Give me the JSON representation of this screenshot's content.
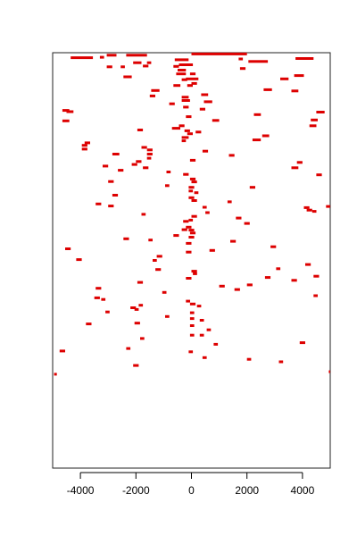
{
  "chart_data": {
    "type": "scatter",
    "title": "",
    "xlabel": "",
    "ylabel": "",
    "xlim": [
      -5000,
      5000
    ],
    "ylim": [
      0,
      1
    ],
    "x_ticks": [
      -4000,
      -2000,
      0,
      2000,
      4000
    ],
    "x_tick_labels": [
      "-4000",
      "-2000",
      "0",
      "2000",
      "4000"
    ],
    "grid": false,
    "legend": "none",
    "bar_color": "#dd0000",
    "segments": [
      {
        "x0": 0,
        "x1": 2000,
        "y": 0.997
      },
      {
        "x0": -4350,
        "x1": -3550,
        "y": 0.988
      },
      {
        "x0": -3050,
        "x1": -2700,
        "y": 0.994
      },
      {
        "x0": -2350,
        "x1": -1600,
        "y": 0.994
      },
      {
        "x0": -3300,
        "x1": -3150,
        "y": 0.989
      },
      {
        "x0": 1700,
        "x1": 1850,
        "y": 0.985
      },
      {
        "x0": 2050,
        "x1": 2750,
        "y": 0.979
      },
      {
        "x0": 3750,
        "x1": 4400,
        "y": 0.986
      },
      {
        "x0": -2100,
        "x1": -1800,
        "y": 0.976
      },
      {
        "x0": -1600,
        "x1": -1450,
        "y": 0.976
      },
      {
        "x0": -600,
        "x1": -100,
        "y": 0.983
      },
      {
        "x0": -450,
        "x1": 50,
        "y": 0.971
      },
      {
        "x0": -3050,
        "x1": -2850,
        "y": 0.966
      },
      {
        "x0": -2550,
        "x1": -2400,
        "y": 0.966
      },
      {
        "x0": -1750,
        "x1": -1550,
        "y": 0.968
      },
      {
        "x0": -650,
        "x1": -450,
        "y": 0.967
      },
      {
        "x0": 1750,
        "x1": 1950,
        "y": 0.962
      },
      {
        "x0": 3700,
        "x1": 4050,
        "y": 0.945
      },
      {
        "x0": -500,
        "x1": -200,
        "y": 0.958
      },
      {
        "x0": -550,
        "x1": -200,
        "y": 0.949
      },
      {
        "x0": -50,
        "x1": 150,
        "y": 0.949
      },
      {
        "x0": -2450,
        "x1": -2150,
        "y": 0.942
      },
      {
        "x0": 3200,
        "x1": 3500,
        "y": 0.937
      },
      {
        "x0": -350,
        "x1": -150,
        "y": 0.935
      },
      {
        "x0": -200,
        "x1": 250,
        "y": 0.937
      },
      {
        "x0": 0,
        "x1": 200,
        "y": 0.926
      },
      {
        "x0": -650,
        "x1": -400,
        "y": 0.921
      },
      {
        "x0": -150,
        "x1": 50,
        "y": 0.921
      },
      {
        "x0": 2600,
        "x1": 2900,
        "y": 0.911
      },
      {
        "x0": 3600,
        "x1": 3850,
        "y": 0.908
      },
      {
        "x0": -1450,
        "x1": -1150,
        "y": 0.909
      },
      {
        "x0": -1500,
        "x1": -1300,
        "y": 0.896
      },
      {
        "x0": 350,
        "x1": 600,
        "y": 0.899
      },
      {
        "x0": -350,
        "x1": -100,
        "y": 0.893
      },
      {
        "x0": -350,
        "x1": -50,
        "y": 0.885
      },
      {
        "x0": 450,
        "x1": 750,
        "y": 0.882
      },
      {
        "x0": -800,
        "x1": -600,
        "y": 0.877
      },
      {
        "x0": -4650,
        "x1": -4400,
        "y": 0.861
      },
      {
        "x0": -4500,
        "x1": -4250,
        "y": 0.858
      },
      {
        "x0": -300,
        "x1": -100,
        "y": 0.869
      },
      {
        "x0": 300,
        "x1": 500,
        "y": 0.864
      },
      {
        "x0": 2250,
        "x1": 2500,
        "y": 0.851
      },
      {
        "x0": 4500,
        "x1": 4800,
        "y": 0.857
      },
      {
        "x0": -4650,
        "x1": -4400,
        "y": 0.836
      },
      {
        "x0": -200,
        "x1": 0,
        "y": 0.846
      },
      {
        "x0": 750,
        "x1": 1000,
        "y": 0.837
      },
      {
        "x0": 4300,
        "x1": 4550,
        "y": 0.838
      },
      {
        "x0": -450,
        "x1": -250,
        "y": 0.824
      },
      {
        "x0": 4250,
        "x1": 4500,
        "y": 0.824
      },
      {
        "x0": -700,
        "x1": -400,
        "y": 0.818
      },
      {
        "x0": -1950,
        "x1": -1750,
        "y": 0.814
      },
      {
        "x0": -250,
        "x1": -50,
        "y": 0.812
      },
      {
        "x0": -150,
        "x1": 50,
        "y": 0.805
      },
      {
        "x0": 150,
        "x1": 350,
        "y": 0.809
      },
      {
        "x0": 2550,
        "x1": 2800,
        "y": 0.8
      },
      {
        "x0": -350,
        "x1": -100,
        "y": 0.796
      },
      {
        "x0": -350,
        "x1": -200,
        "y": 0.788
      },
      {
        "x0": 2200,
        "x1": 2500,
        "y": 0.79
      },
      {
        "x0": -3850,
        "x1": -3650,
        "y": 0.783
      },
      {
        "x0": -3950,
        "x1": -3750,
        "y": 0.777
      },
      {
        "x0": -1800,
        "x1": -1600,
        "y": 0.772
      },
      {
        "x0": -3950,
        "x1": -3750,
        "y": 0.768
      },
      {
        "x0": -1600,
        "x1": -1400,
        "y": 0.766
      },
      {
        "x0": 400,
        "x1": 600,
        "y": 0.763
      },
      {
        "x0": -1600,
        "x1": -1400,
        "y": 0.756
      },
      {
        "x0": -2850,
        "x1": -2600,
        "y": 0.756
      },
      {
        "x0": 1350,
        "x1": 1550,
        "y": 0.753
      },
      {
        "x0": -1600,
        "x1": -1450,
        "y": 0.746
      },
      {
        "x0": -50,
        "x1": 150,
        "y": 0.741
      },
      {
        "x0": 3800,
        "x1": 4000,
        "y": 0.736
      },
      {
        "x0": -2000,
        "x1": -1800,
        "y": 0.738
      },
      {
        "x0": -2150,
        "x1": -1950,
        "y": 0.731
      },
      {
        "x0": -3200,
        "x1": -3000,
        "y": 0.727
      },
      {
        "x0": 3600,
        "x1": 3850,
        "y": 0.723
      },
      {
        "x0": -1750,
        "x1": -1550,
        "y": 0.723
      },
      {
        "x0": -2650,
        "x1": -2450,
        "y": 0.717
      },
      {
        "x0": -900,
        "x1": -750,
        "y": 0.713
      },
      {
        "x0": -300,
        "x1": -100,
        "y": 0.707
      },
      {
        "x0": 4500,
        "x1": 4700,
        "y": 0.706
      },
      {
        "x0": -50,
        "x1": 150,
        "y": 0.696
      },
      {
        "x0": 0,
        "x1": 200,
        "y": 0.689
      },
      {
        "x0": -3000,
        "x1": -2800,
        "y": 0.69
      },
      {
        "x0": -950,
        "x1": -800,
        "y": 0.68
      },
      {
        "x0": -100,
        "x1": 100,
        "y": 0.676
      },
      {
        "x0": 2100,
        "x1": 2300,
        "y": 0.676
      },
      {
        "x0": -100,
        "x1": 50,
        "y": 0.667
      },
      {
        "x0": 100,
        "x1": 250,
        "y": 0.663
      },
      {
        "x0": -2850,
        "x1": -2650,
        "y": 0.657
      },
      {
        "x0": -100,
        "x1": 100,
        "y": 0.651
      },
      {
        "x0": 0,
        "x1": 200,
        "y": 0.644
      },
      {
        "x0": 1300,
        "x1": 1450,
        "y": 0.641
      },
      {
        "x0": -3450,
        "x1": -3250,
        "y": 0.636
      },
      {
        "x0": 4050,
        "x1": 4250,
        "y": 0.627
      },
      {
        "x0": 4850,
        "x1": 5000,
        "y": 0.63
      },
      {
        "x0": -3000,
        "x1": -2800,
        "y": 0.631
      },
      {
        "x0": 4150,
        "x1": 4350,
        "y": 0.621
      },
      {
        "x0": 400,
        "x1": 550,
        "y": 0.628
      },
      {
        "x0": 4350,
        "x1": 4500,
        "y": 0.618
      },
      {
        "x0": 500,
        "x1": 650,
        "y": 0.615
      },
      {
        "x0": -1800,
        "x1": -1650,
        "y": 0.611
      },
      {
        "x0": 0,
        "x1": 200,
        "y": 0.606
      },
      {
        "x0": -100,
        "x1": 50,
        "y": 0.597
      },
      {
        "x0": 1600,
        "x1": 1800,
        "y": 0.602
      },
      {
        "x0": -300,
        "x1": -100,
        "y": 0.594
      },
      {
        "x0": 1900,
        "x1": 2100,
        "y": 0.589
      },
      {
        "x0": -200,
        "x1": 0,
        "y": 0.58
      },
      {
        "x0": -100,
        "x1": 100,
        "y": 0.573
      },
      {
        "x0": -350,
        "x1": -150,
        "y": 0.574
      },
      {
        "x0": -50,
        "x1": 150,
        "y": 0.566
      },
      {
        "x0": -650,
        "x1": -450,
        "y": 0.56
      },
      {
        "x0": -100,
        "x1": 100,
        "y": 0.556
      },
      {
        "x0": -2450,
        "x1": -2250,
        "y": 0.552
      },
      {
        "x0": -1550,
        "x1": -1400,
        "y": 0.549
      },
      {
        "x0": 1400,
        "x1": 1600,
        "y": 0.546
      },
      {
        "x0": -200,
        "x1": 0,
        "y": 0.541
      },
      {
        "x0": 2850,
        "x1": 3050,
        "y": 0.533
      },
      {
        "x0": -4550,
        "x1": -4350,
        "y": 0.528
      },
      {
        "x0": -200,
        "x1": 0,
        "y": 0.52
      },
      {
        "x0": 650,
        "x1": 850,
        "y": 0.524
      },
      {
        "x0": -1250,
        "x1": -1050,
        "y": 0.51
      },
      {
        "x0": -4150,
        "x1": -3950,
        "y": 0.502
      },
      {
        "x0": -1400,
        "x1": -1250,
        "y": 0.5
      },
      {
        "x0": 3050,
        "x1": 3200,
        "y": 0.48
      },
      {
        "x0": -1300,
        "x1": -1100,
        "y": 0.478
      },
      {
        "x0": 4100,
        "x1": 4300,
        "y": 0.49
      },
      {
        "x0": 0,
        "x1": 200,
        "y": 0.474
      },
      {
        "x0": 50,
        "x1": 200,
        "y": 0.468
      },
      {
        "x0": 2650,
        "x1": 2850,
        "y": 0.459
      },
      {
        "x0": -200,
        "x1": 0,
        "y": 0.457
      },
      {
        "x0": 3600,
        "x1": 3800,
        "y": 0.452
      },
      {
        "x0": 4400,
        "x1": 4600,
        "y": 0.462
      },
      {
        "x0": -1950,
        "x1": -1750,
        "y": 0.447
      },
      {
        "x0": 2000,
        "x1": 2200,
        "y": 0.441
      },
      {
        "x0": 1000,
        "x1": 1200,
        "y": 0.438
      },
      {
        "x0": -3450,
        "x1": -3250,
        "y": 0.433
      },
      {
        "x0": 1550,
        "x1": 1750,
        "y": 0.43
      },
      {
        "x0": -1050,
        "x1": -900,
        "y": 0.423
      },
      {
        "x0": -3500,
        "x1": -3300,
        "y": 0.41
      },
      {
        "x0": 4400,
        "x1": 4550,
        "y": 0.415
      },
      {
        "x0": -3250,
        "x1": -3100,
        "y": 0.406
      },
      {
        "x0": -200,
        "x1": -50,
        "y": 0.402
      },
      {
        "x0": -50,
        "x1": 150,
        "y": 0.395
      },
      {
        "x0": -1900,
        "x1": -1750,
        "y": 0.392
      },
      {
        "x0": -2200,
        "x1": -2000,
        "y": 0.386
      },
      {
        "x0": 200,
        "x1": 350,
        "y": 0.39
      },
      {
        "x0": -2050,
        "x1": -1900,
        "y": 0.382
      },
      {
        "x0": -3100,
        "x1": -2950,
        "y": 0.376
      },
      {
        "x0": -50,
        "x1": 100,
        "y": 0.374
      },
      {
        "x0": -950,
        "x1": -800,
        "y": 0.365
      },
      {
        "x0": -50,
        "x1": 100,
        "y": 0.36
      },
      {
        "x0": 300,
        "x1": 450,
        "y": 0.356
      },
      {
        "x0": -2050,
        "x1": -1850,
        "y": 0.349
      },
      {
        "x0": -50,
        "x1": 100,
        "y": 0.343
      },
      {
        "x0": -3800,
        "x1": -3600,
        "y": 0.347
      },
      {
        "x0": 550,
        "x1": 700,
        "y": 0.333
      },
      {
        "x0": 300,
        "x1": 450,
        "y": 0.32
      },
      {
        "x0": -1850,
        "x1": -1700,
        "y": 0.312
      },
      {
        "x0": -50,
        "x1": 100,
        "y": 0.32
      },
      {
        "x0": 800,
        "x1": 950,
        "y": 0.298
      },
      {
        "x0": 3900,
        "x1": 4100,
        "y": 0.302
      },
      {
        "x0": -2350,
        "x1": -2200,
        "y": 0.288
      },
      {
        "x0": -4750,
        "x1": -4550,
        "y": 0.282
      },
      {
        "x0": -100,
        "x1": 50,
        "y": 0.28
      },
      {
        "x0": 400,
        "x1": 550,
        "y": 0.266
      },
      {
        "x0": 2000,
        "x1": 2150,
        "y": 0.262
      },
      {
        "x0": 3150,
        "x1": 3300,
        "y": 0.256
      },
      {
        "x0": -2100,
        "x1": -1900,
        "y": 0.247
      },
      {
        "x0": -4950,
        "x1": -4850,
        "y": 0.226
      },
      {
        "x0": 4950,
        "x1": 5000,
        "y": 0.232
      }
    ]
  }
}
